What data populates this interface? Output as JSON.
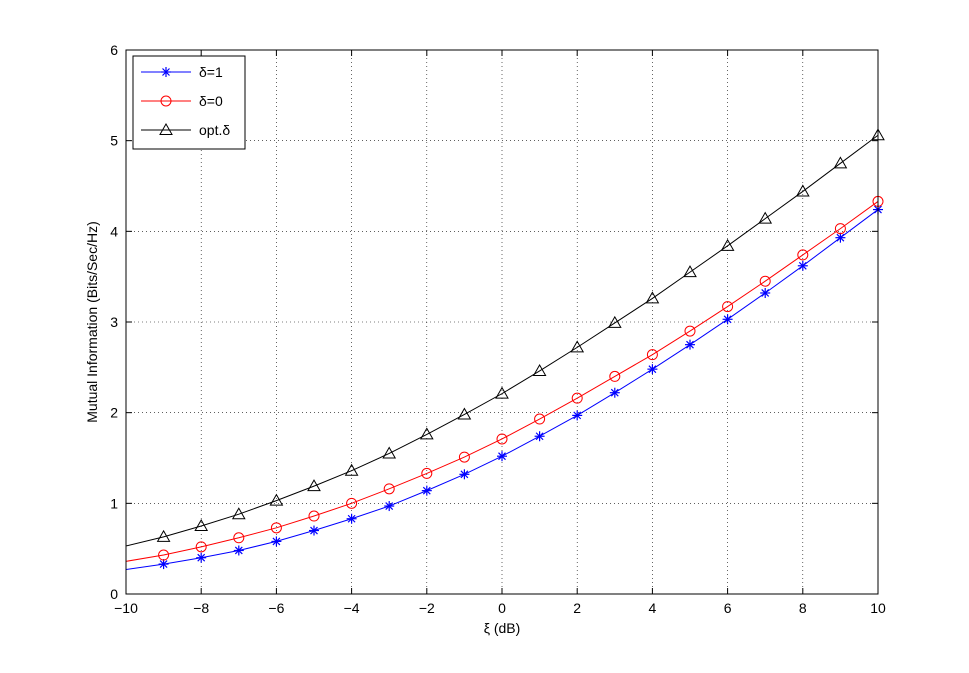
{
  "chart_data": {
    "type": "line",
    "xlabel": "ξ (dB)",
    "ylabel": "Mutual Information (Bits/Sec/Hz)",
    "xlim": [
      -10,
      10
    ],
    "ylim": [
      0,
      6
    ],
    "xticks": [
      -10,
      -8,
      -6,
      -4,
      -2,
      0,
      2,
      4,
      6,
      8,
      10
    ],
    "yticks": [
      0,
      1,
      2,
      3,
      4,
      5,
      6
    ],
    "xtick_labels": [
      "−10",
      "−8",
      "−6",
      "−4",
      "−2",
      "0",
      "2",
      "4",
      "6",
      "8",
      "10"
    ],
    "ytick_labels": [
      "0",
      "1",
      "2",
      "3",
      "4",
      "5",
      "6"
    ],
    "grid": true,
    "legend_position": "top-left",
    "curve_x_start": -10,
    "x": [
      -9,
      -8,
      -7,
      -6,
      -5,
      -4,
      -3,
      -2,
      -1,
      0,
      1,
      2,
      3,
      4,
      5,
      6,
      7,
      8,
      9,
      10
    ],
    "series": [
      {
        "name": "δ=1",
        "color": "#0000ff",
        "marker": "asterisk",
        "start_value": 0.27,
        "values": [
          0.33,
          0.4,
          0.48,
          0.58,
          0.7,
          0.83,
          0.97,
          1.14,
          1.32,
          1.52,
          1.74,
          1.97,
          2.22,
          2.48,
          2.75,
          3.03,
          3.32,
          3.62,
          3.93,
          4.24
        ]
      },
      {
        "name": "δ=0",
        "color": "#ff0000",
        "marker": "circle",
        "start_value": 0.36,
        "values": [
          0.43,
          0.52,
          0.62,
          0.73,
          0.86,
          1.0,
          1.16,
          1.33,
          1.51,
          1.71,
          1.93,
          2.16,
          2.4,
          2.64,
          2.9,
          3.17,
          3.45,
          3.74,
          4.03,
          4.33
        ]
      },
      {
        "name": "opt.δ",
        "color": "#000000",
        "marker": "triangle",
        "start_value": 0.53,
        "values": [
          0.63,
          0.75,
          0.88,
          1.03,
          1.19,
          1.36,
          1.55,
          1.76,
          1.98,
          2.21,
          2.46,
          2.72,
          2.99,
          3.26,
          3.55,
          3.84,
          4.14,
          4.44,
          4.75,
          5.06
        ]
      }
    ]
  }
}
